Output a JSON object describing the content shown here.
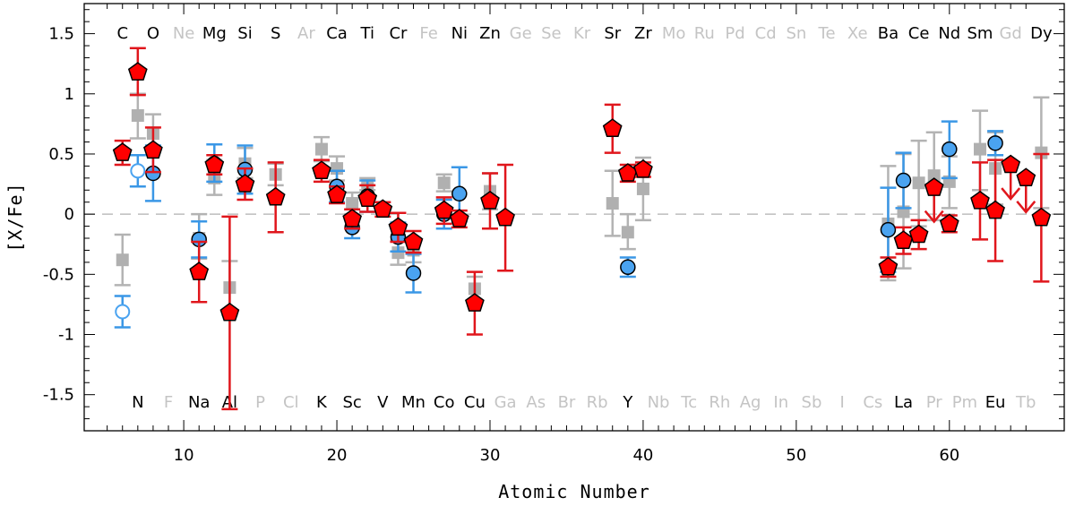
{
  "chart_data": {
    "type": "scatter",
    "xlabel": "Atomic Number",
    "ylabel": "[X/Fe]",
    "xlim": [
      3.5,
      67.5
    ],
    "ylim": [
      -1.8,
      1.75
    ],
    "x_ticks": [
      10,
      20,
      30,
      40,
      50,
      60
    ],
    "y_ticks": [
      -1.5,
      -1,
      -0.5,
      0,
      0.5,
      1,
      1.5
    ],
    "y_tick_labels": [
      "-1.5",
      "-1",
      "-0.5",
      "0",
      "0.5",
      "1",
      "1.5"
    ],
    "reference_line_y": 0,
    "colors": {
      "red": "#ff0000",
      "red_error": "#e0161c",
      "blue": "#4aa3f0",
      "blue_error": "#3a97e6",
      "gray": "#b0b0b0",
      "gray_error": "#b3b3b3",
      "element_dark": "#000000",
      "element_light": "#c4c4c4",
      "zero_line": "#bdbdbd"
    },
    "element_labels_top": [
      {
        "z": 6,
        "symbol": "C",
        "measured": true
      },
      {
        "z": 8,
        "symbol": "O",
        "measured": true
      },
      {
        "z": 10,
        "symbol": "Ne",
        "measured": false
      },
      {
        "z": 12,
        "symbol": "Mg",
        "measured": true
      },
      {
        "z": 14,
        "symbol": "Si",
        "measured": true
      },
      {
        "z": 16,
        "symbol": "S",
        "measured": true
      },
      {
        "z": 18,
        "symbol": "Ar",
        "measured": false
      },
      {
        "z": 20,
        "symbol": "Ca",
        "measured": true
      },
      {
        "z": 22,
        "symbol": "Ti",
        "measured": true
      },
      {
        "z": 24,
        "symbol": "Cr",
        "measured": true
      },
      {
        "z": 26,
        "symbol": "Fe",
        "measured": false
      },
      {
        "z": 28,
        "symbol": "Ni",
        "measured": true
      },
      {
        "z": 30,
        "symbol": "Zn",
        "measured": true
      },
      {
        "z": 32,
        "symbol": "Ge",
        "measured": false
      },
      {
        "z": 34,
        "symbol": "Se",
        "measured": false
      },
      {
        "z": 36,
        "symbol": "Kr",
        "measured": false
      },
      {
        "z": 38,
        "symbol": "Sr",
        "measured": true
      },
      {
        "z": 40,
        "symbol": "Zr",
        "measured": true
      },
      {
        "z": 42,
        "symbol": "Mo",
        "measured": false
      },
      {
        "z": 44,
        "symbol": "Ru",
        "measured": false
      },
      {
        "z": 46,
        "symbol": "Pd",
        "measured": false
      },
      {
        "z": 48,
        "symbol": "Cd",
        "measured": false
      },
      {
        "z": 50,
        "symbol": "Sn",
        "measured": false
      },
      {
        "z": 52,
        "symbol": "Te",
        "measured": false
      },
      {
        "z": 54,
        "symbol": "Xe",
        "measured": false
      },
      {
        "z": 56,
        "symbol": "Ba",
        "measured": true
      },
      {
        "z": 58,
        "symbol": "Ce",
        "measured": true
      },
      {
        "z": 60,
        "symbol": "Nd",
        "measured": true
      },
      {
        "z": 62,
        "symbol": "Sm",
        "measured": true
      },
      {
        "z": 64,
        "symbol": "Gd",
        "measured": false
      },
      {
        "z": 66,
        "symbol": "Dy",
        "measured": true
      }
    ],
    "element_labels_bottom": [
      {
        "z": 7,
        "symbol": "N",
        "measured": true
      },
      {
        "z": 9,
        "symbol": "F",
        "measured": false
      },
      {
        "z": 11,
        "symbol": "Na",
        "measured": true
      },
      {
        "z": 13,
        "symbol": "Al",
        "measured": true
      },
      {
        "z": 15,
        "symbol": "P",
        "measured": false
      },
      {
        "z": 17,
        "symbol": "Cl",
        "measured": false
      },
      {
        "z": 19,
        "symbol": "K",
        "measured": true
      },
      {
        "z": 21,
        "symbol": "Sc",
        "measured": true
      },
      {
        "z": 23,
        "symbol": "V",
        "measured": true
      },
      {
        "z": 25,
        "symbol": "Mn",
        "measured": true
      },
      {
        "z": 27,
        "symbol": "Co",
        "measured": true
      },
      {
        "z": 29,
        "symbol": "Cu",
        "measured": true
      },
      {
        "z": 31,
        "symbol": "Ga",
        "measured": false
      },
      {
        "z": 33,
        "symbol": "As",
        "measured": false
      },
      {
        "z": 35,
        "symbol": "Br",
        "measured": false
      },
      {
        "z": 37,
        "symbol": "Rb",
        "measured": false
      },
      {
        "z": 39,
        "symbol": "Y",
        "measured": true
      },
      {
        "z": 41,
        "symbol": "Nb",
        "measured": false
      },
      {
        "z": 43,
        "symbol": "Tc",
        "measured": false
      },
      {
        "z": 45,
        "symbol": "Rh",
        "measured": false
      },
      {
        "z": 47,
        "symbol": "Ag",
        "measured": false
      },
      {
        "z": 49,
        "symbol": "In",
        "measured": false
      },
      {
        "z": 51,
        "symbol": "Sb",
        "measured": false
      },
      {
        "z": 53,
        "symbol": "I",
        "measured": false
      },
      {
        "z": 55,
        "symbol": "Cs",
        "measured": false
      },
      {
        "z": 57,
        "symbol": "La",
        "measured": true
      },
      {
        "z": 59,
        "symbol": "Pr",
        "measured": false
      },
      {
        "z": 61,
        "symbol": "Pm",
        "measured": false
      },
      {
        "z": 63,
        "symbol": "Eu",
        "measured": true
      },
      {
        "z": 65,
        "symbol": "Tb",
        "measured": false
      }
    ],
    "series": [
      {
        "marker": "square",
        "color": "gray",
        "points": [
          {
            "x": 6,
            "y": -0.38,
            "lo": -0.59,
            "hi": -0.17
          },
          {
            "x": 7,
            "y": 0.82,
            "lo": 0.63,
            "hi": 1.0
          },
          {
            "x": 8,
            "y": 0.67,
            "lo": 0.52,
            "hi": 0.83
          },
          {
            "x": 11,
            "y": -0.2,
            "lo": -0.37,
            "hi": 0.0
          },
          {
            "x": 12,
            "y": 0.3,
            "lo": 0.16,
            "hi": 0.45
          },
          {
            "x": 13,
            "y": -0.61,
            "lo": -0.84,
            "hi": -0.39
          },
          {
            "x": 14,
            "y": 0.42,
            "lo": 0.3,
            "hi": 0.55
          },
          {
            "x": 16,
            "y": 0.33,
            "lo": 0.24,
            "hi": 0.42
          },
          {
            "x": 19,
            "y": 0.54,
            "lo": 0.44,
            "hi": 0.64
          },
          {
            "x": 20,
            "y": 0.38,
            "lo": 0.28,
            "hi": 0.48
          },
          {
            "x": 21,
            "y": 0.09,
            "lo": 0.0,
            "hi": 0.18
          },
          {
            "x": 22,
            "y": 0.25,
            "lo": 0.2,
            "hi": 0.3
          },
          {
            "x": 24,
            "y": -0.32,
            "lo": -0.42,
            "hi": -0.22
          },
          {
            "x": 25,
            "y": -0.3,
            "lo": -0.4,
            "hi": -0.2
          },
          {
            "x": 27,
            "y": 0.26,
            "lo": 0.19,
            "hi": 0.33
          },
          {
            "x": 29,
            "y": -0.62,
            "lo": -0.72,
            "hi": -0.52
          },
          {
            "x": 30,
            "y": 0.19,
            "lo": 0.04,
            "hi": 0.34
          },
          {
            "x": 38,
            "y": 0.09,
            "lo": -0.18,
            "hi": 0.36
          },
          {
            "x": 39,
            "y": -0.15,
            "lo": -0.29,
            "hi": 0.0
          },
          {
            "x": 40,
            "y": 0.21,
            "lo": -0.05,
            "hi": 0.47
          },
          {
            "x": 56,
            "y": -0.08,
            "lo": -0.55,
            "hi": 0.4
          },
          {
            "x": 57,
            "y": 0.02,
            "lo": -0.45,
            "hi": 0.5
          },
          {
            "x": 58,
            "y": 0.26,
            "lo": -0.1,
            "hi": 0.61
          },
          {
            "x": 59,
            "y": 0.32,
            "lo": -0.05,
            "hi": 0.68
          },
          {
            "x": 60,
            "y": 0.27,
            "lo": 0.05,
            "hi": 0.48
          },
          {
            "x": 62,
            "y": 0.54,
            "lo": 0.2,
            "hi": 0.86
          },
          {
            "x": 63,
            "y": 0.38,
            "lo": 0.08,
            "hi": 0.68
          },
          {
            "x": 66,
            "y": 0.51,
            "lo": 0.05,
            "hi": 0.97
          }
        ]
      },
      {
        "marker": "circle",
        "color": "blue",
        "points": [
          {
            "x": 6,
            "y": -0.81,
            "lo": -0.94,
            "hi": -0.68,
            "open": true
          },
          {
            "x": 7,
            "y": 0.36,
            "lo": 0.23,
            "hi": 0.49,
            "open": true
          },
          {
            "x": 8,
            "y": 0.34,
            "lo": 0.11,
            "hi": 0.57
          },
          {
            "x": 11,
            "y": -0.21,
            "lo": -0.36,
            "hi": -0.06
          },
          {
            "x": 12,
            "y": 0.42,
            "lo": 0.27,
            "hi": 0.58
          },
          {
            "x": 14,
            "y": 0.37,
            "lo": 0.17,
            "hi": 0.57
          },
          {
            "x": 20,
            "y": 0.23,
            "lo": 0.1,
            "hi": 0.36
          },
          {
            "x": 21,
            "y": -0.11,
            "lo": -0.2,
            "hi": -0.02
          },
          {
            "x": 22,
            "y": 0.15,
            "lo": 0.02,
            "hi": 0.28
          },
          {
            "x": 24,
            "y": -0.19,
            "lo": -0.31,
            "hi": -0.07
          },
          {
            "x": 25,
            "y": -0.49,
            "lo": -0.65,
            "hi": -0.33
          },
          {
            "x": 27,
            "y": 0.0,
            "lo": -0.12,
            "hi": 0.12
          },
          {
            "x": 28,
            "y": 0.17,
            "lo": -0.06,
            "hi": 0.39
          },
          {
            "x": 39,
            "y": -0.44,
            "lo": -0.52,
            "hi": -0.36
          },
          {
            "x": 56,
            "y": -0.13,
            "lo": -0.48,
            "hi": 0.22
          },
          {
            "x": 57,
            "y": 0.28,
            "lo": 0.05,
            "hi": 0.51
          },
          {
            "x": 60,
            "y": 0.54,
            "lo": 0.3,
            "hi": 0.77
          },
          {
            "x": 63,
            "y": 0.59,
            "lo": 0.49,
            "hi": 0.69
          }
        ]
      },
      {
        "marker": "pentagon",
        "color": "red",
        "points": [
          {
            "x": 6,
            "y": 0.51,
            "lo": 0.41,
            "hi": 0.61
          },
          {
            "x": 7,
            "y": 1.18,
            "lo": 0.99,
            "hi": 1.38
          },
          {
            "x": 8,
            "y": 0.53,
            "lo": 0.35,
            "hi": 0.72
          },
          {
            "x": 11,
            "y": -0.48,
            "lo": -0.73,
            "hi": -0.23
          },
          {
            "x": 12,
            "y": 0.41,
            "lo": 0.33,
            "hi": 0.49
          },
          {
            "x": 13,
            "y": -0.82,
            "lo": -1.62,
            "hi": -0.02
          },
          {
            "x": 14,
            "y": 0.25,
            "lo": 0.12,
            "hi": 0.38
          },
          {
            "x": 16,
            "y": 0.14,
            "lo": -0.15,
            "hi": 0.43
          },
          {
            "x": 19,
            "y": 0.36,
            "lo": 0.27,
            "hi": 0.45
          },
          {
            "x": 20,
            "y": 0.16,
            "lo": 0.09,
            "hi": 0.23
          },
          {
            "x": 21,
            "y": -0.04,
            "lo": -0.12,
            "hi": 0.04
          },
          {
            "x": 22,
            "y": 0.13,
            "lo": 0.02,
            "hi": 0.24
          },
          {
            "x": 23,
            "y": 0.04,
            "lo": -0.02,
            "hi": 0.1
          },
          {
            "x": 24,
            "y": -0.11,
            "lo": -0.23,
            "hi": 0.01
          },
          {
            "x": 25,
            "y": -0.23,
            "lo": -0.32,
            "hi": -0.14
          },
          {
            "x": 27,
            "y": 0.03,
            "lo": -0.08,
            "hi": 0.14
          },
          {
            "x": 28,
            "y": -0.04,
            "lo": -0.11,
            "hi": 0.03
          },
          {
            "x": 29,
            "y": -0.74,
            "lo": -1.0,
            "hi": -0.48
          },
          {
            "x": 30,
            "y": 0.11,
            "lo": -0.12,
            "hi": 0.34
          },
          {
            "x": 31,
            "y": -0.03,
            "lo": -0.47,
            "hi": 0.41
          },
          {
            "x": 38,
            "y": 0.71,
            "lo": 0.51,
            "hi": 0.91
          },
          {
            "x": 39,
            "y": 0.34,
            "lo": 0.27,
            "hi": 0.41
          },
          {
            "x": 40,
            "y": 0.37,
            "lo": 0.31,
            "hi": 0.43
          },
          {
            "x": 56,
            "y": -0.44,
            "lo": -0.52,
            "hi": -0.36
          },
          {
            "x": 57,
            "y": -0.22,
            "lo": -0.33,
            "hi": -0.11
          },
          {
            "x": 58,
            "y": -0.17,
            "lo": -0.29,
            "hi": -0.05
          },
          {
            "x": 59,
            "y": 0.22,
            "upper_limit": true
          },
          {
            "x": 60,
            "y": -0.08,
            "lo": -0.15,
            "hi": -0.01
          },
          {
            "x": 62,
            "y": 0.11,
            "lo": -0.21,
            "hi": 0.43
          },
          {
            "x": 63,
            "y": 0.03,
            "lo": -0.39,
            "hi": 0.45
          },
          {
            "x": 64,
            "y": 0.41,
            "upper_limit": true
          },
          {
            "x": 65,
            "y": 0.3,
            "upper_limit": true
          },
          {
            "x": 66,
            "y": -0.03,
            "lo": -0.56,
            "hi": 0.5
          }
        ]
      }
    ]
  }
}
